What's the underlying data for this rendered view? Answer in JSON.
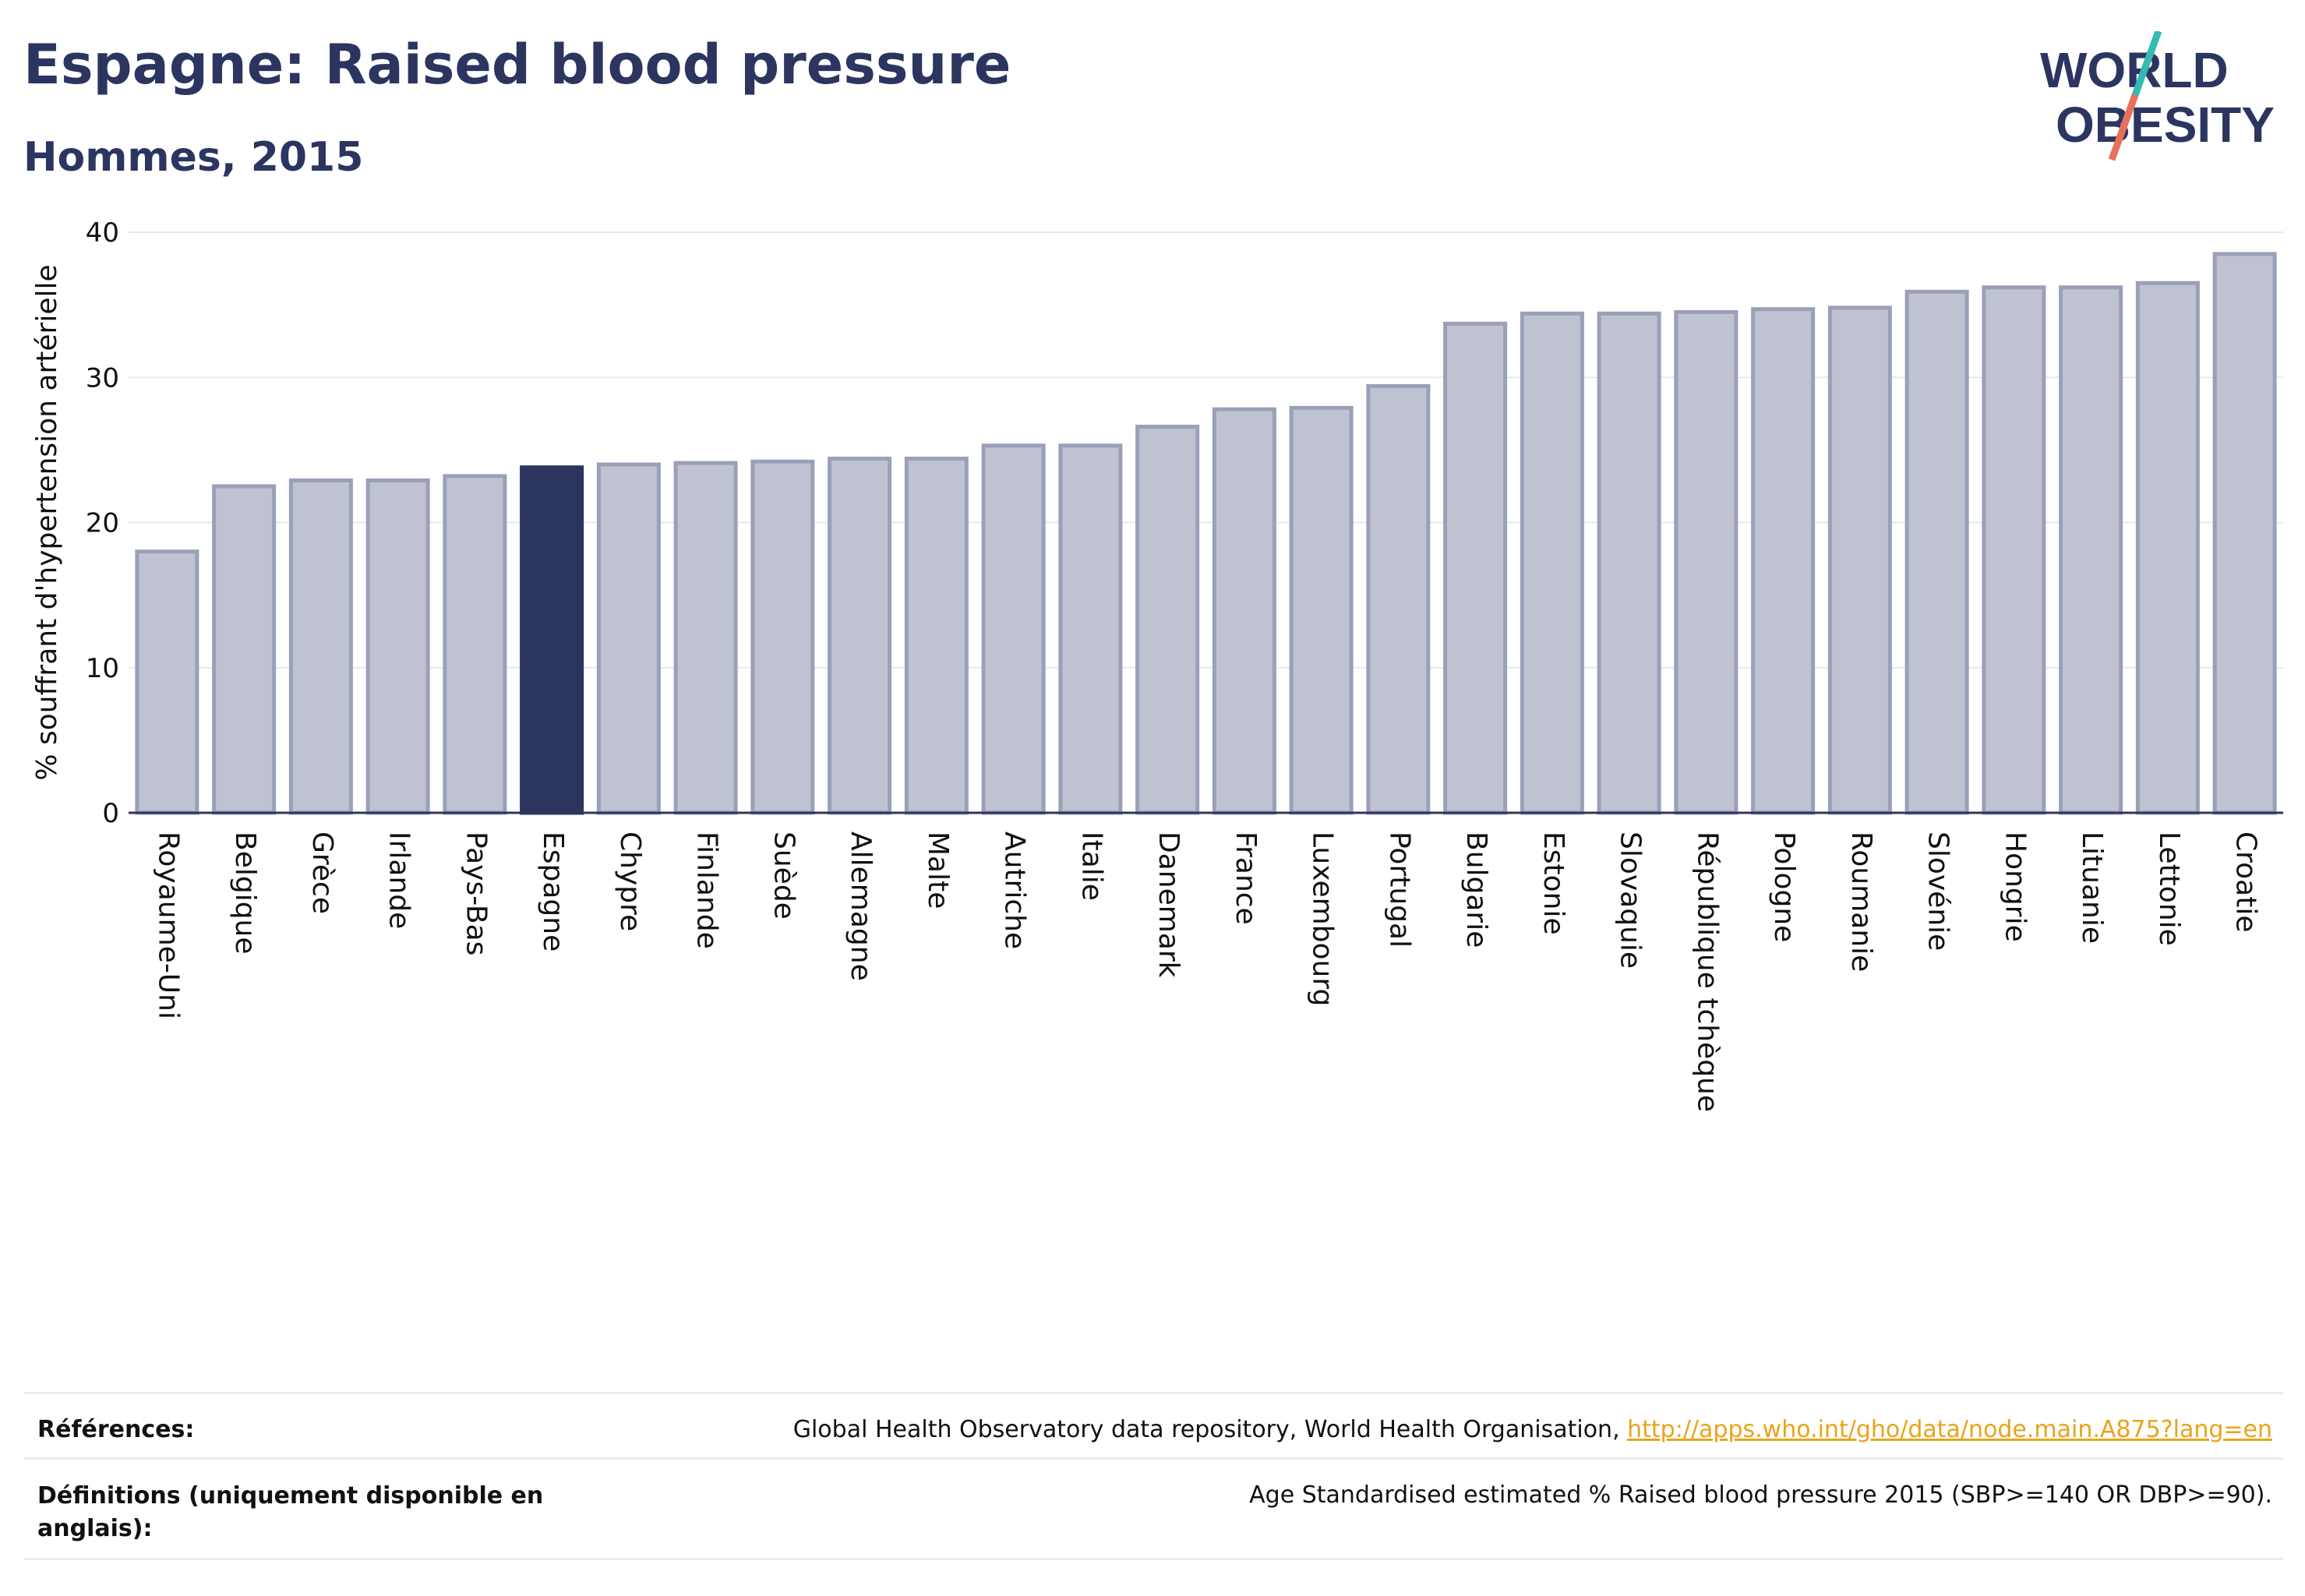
{
  "header": {
    "title": "Espagne: Raised blood pressure",
    "subtitle": "Hommes, 2015"
  },
  "logo": {
    "line1": "WORLD",
    "line2": "OBESITY",
    "accent_colors": [
      "#35b9b0",
      "#e8705a"
    ],
    "text_color": "#2b3560"
  },
  "chart_data": {
    "type": "bar",
    "ylabel": "% souffrant d'hypertension artérielle",
    "ylim": [
      0,
      40
    ],
    "yticks": [
      0,
      10,
      20,
      30,
      40
    ],
    "grid": true,
    "highlight": "Espagne",
    "colors": {
      "bar": "#bfc3d1",
      "bar_edge": "#9aa0b8",
      "highlight": "#2b3560"
    },
    "categories": [
      "Royaume-Uni",
      "Belgique",
      "Grèce",
      "Irlande",
      "Pays-Bas",
      "Espagne",
      "Chypre",
      "Finlande",
      "Suède",
      "Allemagne",
      "Malte",
      "Autriche",
      "Italie",
      "Danemark",
      "France",
      "Luxembourg",
      "Portugal",
      "Bulgarie",
      "Estonie",
      "Slovaquie",
      "République tchèque",
      "Pologne",
      "Roumanie",
      "Slovénie",
      "Hongrie",
      "Lituanie",
      "Lettonie",
      "Croatie"
    ],
    "values": [
      18.0,
      22.5,
      22.9,
      22.9,
      23.2,
      23.8,
      24.0,
      24.1,
      24.2,
      24.4,
      24.4,
      25.3,
      25.3,
      26.6,
      27.8,
      27.9,
      29.4,
      33.7,
      34.4,
      34.4,
      34.5,
      34.7,
      34.8,
      35.9,
      36.2,
      36.2,
      36.5,
      38.5
    ]
  },
  "footer": {
    "references_label": "Références:",
    "references_text": "Global Health Observatory data repository, World Health Organisation, ",
    "references_link": "http://apps.who.int/gho/data/node.main.A875?lang=en",
    "definitions_label_line1": "Définitions (uniquement disponible en",
    "definitions_label_line2": "anglais):",
    "definitions_text": "Age Standardised estimated % Raised blood pressure 2015 (SBP>=140 OR DBP>=90)."
  }
}
